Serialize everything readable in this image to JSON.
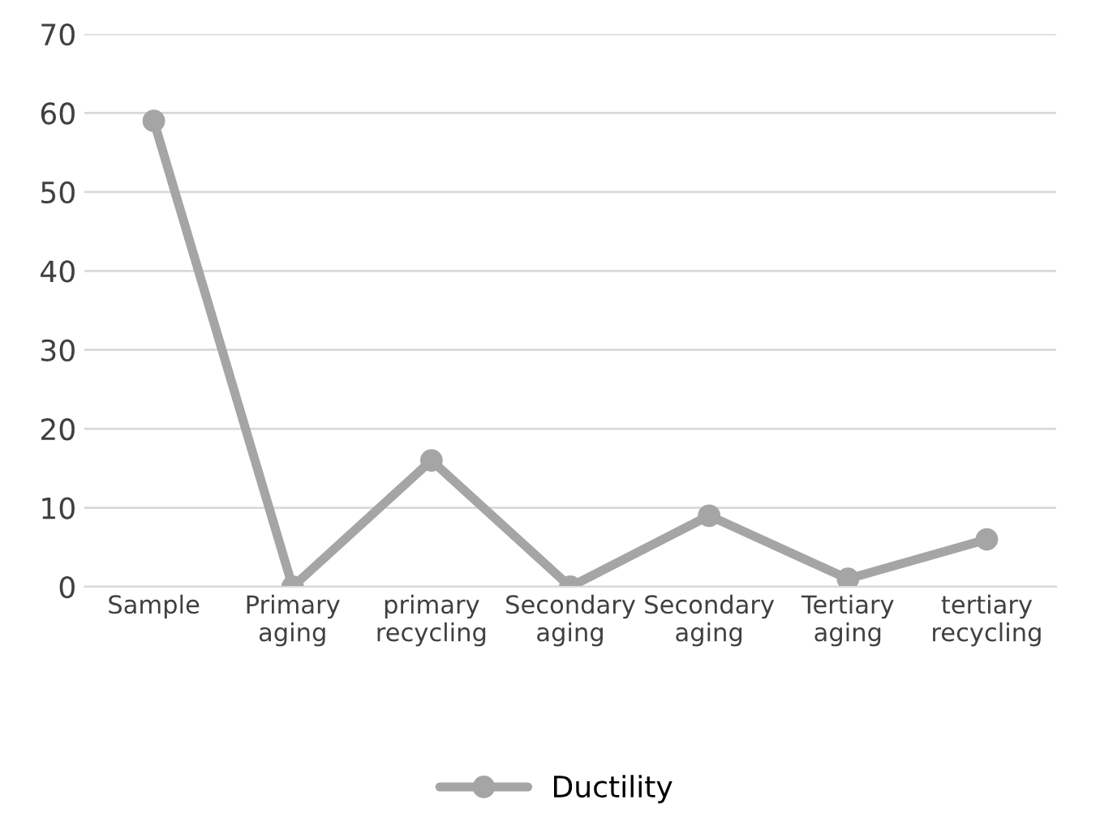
{
  "chart_data": {
    "type": "line",
    "categories": [
      "Sample",
      "Primary aging",
      "primary recycling",
      "Secondary aging",
      "Secondary aging",
      "Tertiary aging",
      "tertiary recycling"
    ],
    "series": [
      {
        "name": "Ductility",
        "color": "#a5a5a5",
        "values": [
          59,
          0,
          16,
          0,
          9,
          1,
          6
        ]
      }
    ],
    "ylim": [
      0,
      70
    ],
    "yticks": [
      0,
      10,
      20,
      30,
      40,
      50,
      60,
      70
    ],
    "grid": "y",
    "legend": "bottom",
    "marker": "circle",
    "line_style": "solid"
  }
}
